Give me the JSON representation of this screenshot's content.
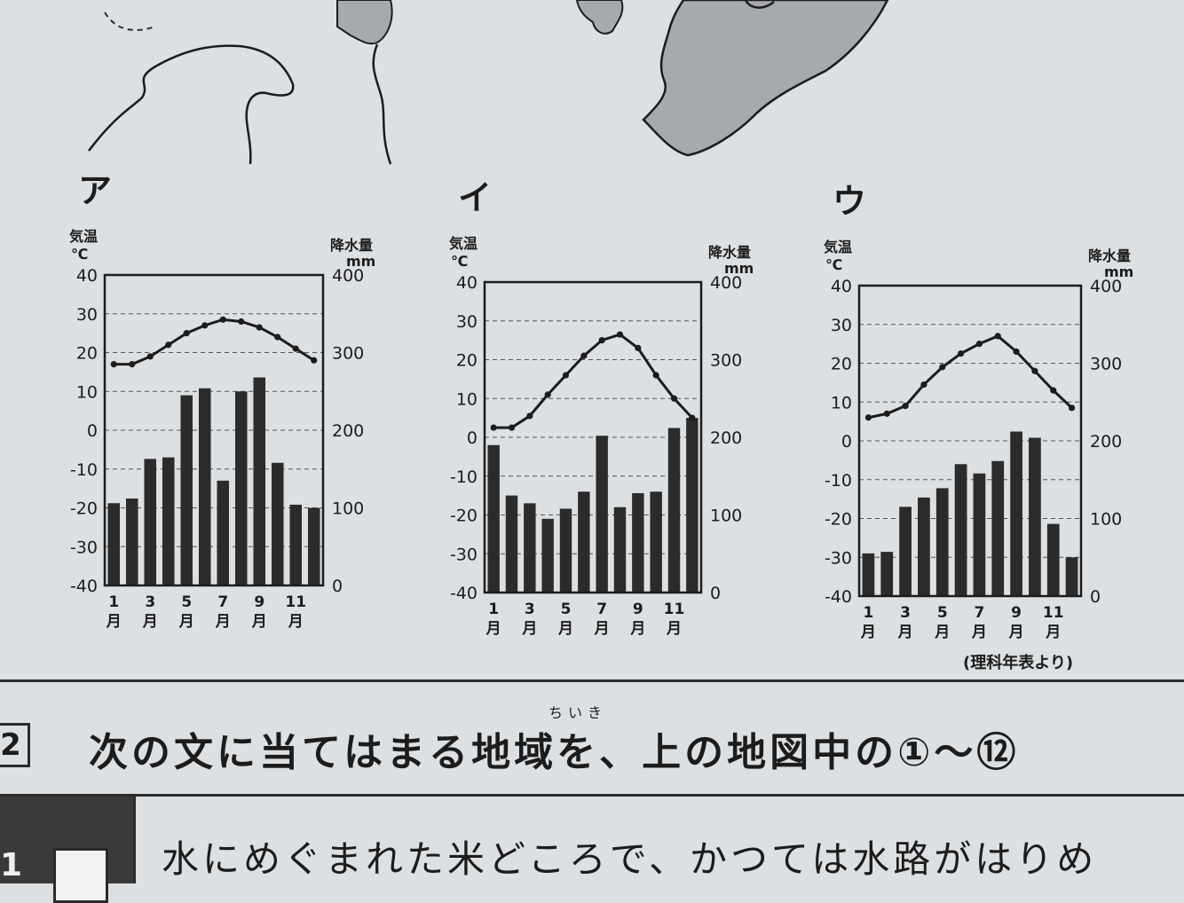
{
  "chart_data": [
    {
      "type": "bar+line",
      "title": "ア",
      "y_left_label": [
        "気温",
        "℃"
      ],
      "y_right_label": [
        "降水量",
        "mm"
      ],
      "y_left_ticks": [
        "40",
        "30",
        "20",
        "10",
        "0",
        "-10",
        "-20",
        "-30",
        "-40"
      ],
      "y_right_ticks": [
        "400",
        "300",
        "200",
        "100",
        "0"
      ],
      "x_tick_nums": [
        "1",
        "3",
        "5",
        "7",
        "9",
        "11"
      ],
      "x_tick_unit": "月",
      "ylim_temp": [
        -40,
        40
      ],
      "ylim_precip": [
        0,
        400
      ],
      "months": [
        1,
        2,
        3,
        4,
        5,
        6,
        7,
        8,
        9,
        10,
        11,
        12
      ],
      "temperature": [
        17,
        17,
        19,
        22,
        25,
        27,
        28.5,
        28,
        26.5,
        24,
        21,
        18
      ],
      "precipitation": [
        106,
        112,
        163,
        165,
        245,
        254,
        135,
        250,
        268,
        158,
        104,
        100
      ]
    },
    {
      "type": "bar+line",
      "title": "イ",
      "y_left_label": [
        "気温",
        "℃"
      ],
      "y_right_label": [
        "降水量",
        "mm"
      ],
      "y_left_ticks": [
        "40",
        "30",
        "20",
        "10",
        "0",
        "-10",
        "-20",
        "-30",
        "-40"
      ],
      "y_right_ticks": [
        "400",
        "300",
        "200",
        "100",
        "0"
      ],
      "x_tick_nums": [
        "1",
        "3",
        "5",
        "7",
        "9",
        "11"
      ],
      "x_tick_unit": "月",
      "ylim_temp": [
        -40,
        40
      ],
      "ylim_precip": [
        0,
        400
      ],
      "months": [
        1,
        2,
        3,
        4,
        5,
        6,
        7,
        8,
        9,
        10,
        11,
        12
      ],
      "temperature": [
        2.5,
        2.5,
        5.5,
        11,
        16,
        21,
        25,
        26.5,
        23,
        16,
        10,
        5
      ],
      "precipitation": [
        190,
        125,
        115,
        95,
        108,
        130,
        202,
        110,
        128,
        130,
        212,
        225
      ]
    },
    {
      "type": "bar+line",
      "title": "ウ",
      "y_left_label": [
        "気温",
        "℃"
      ],
      "y_right_label": [
        "降水量",
        "mm"
      ],
      "y_left_ticks": [
        "40",
        "30",
        "20",
        "10",
        "0",
        "-10",
        "-20",
        "-30",
        "-40"
      ],
      "y_right_ticks": [
        "400",
        "300",
        "200",
        "100",
        "0"
      ],
      "x_tick_nums": [
        "1",
        "3",
        "5",
        "7",
        "9",
        "11"
      ],
      "x_tick_unit": "月",
      "ylim_temp": [
        -40,
        40
      ],
      "ylim_precip": [
        0,
        400
      ],
      "months": [
        1,
        2,
        3,
        4,
        5,
        6,
        7,
        8,
        9,
        10,
        11,
        12
      ],
      "temperature": [
        6,
        7,
        9,
        14.5,
        19,
        22.5,
        25,
        27,
        23,
        18,
        13,
        8.5
      ],
      "precipitation": [
        55,
        57,
        115,
        127,
        139,
        170,
        158,
        174,
        212,
        204,
        93,
        50
      ]
    }
  ],
  "source_note": "(理科年表より)",
  "question": {
    "number": "2",
    "ruby": "ちいき",
    "text": "次の文に当てはまる地域を、上の地図中の①～⑫"
  },
  "row1": {
    "number": "1",
    "text": "水にめぐまれた米どころで、かつては水路がはりめ"
  },
  "colors": {
    "paper": "#dde0e3",
    "ink": "#1c1c1c",
    "bar": "#2b2b2b",
    "land": "#a6a9ad"
  }
}
